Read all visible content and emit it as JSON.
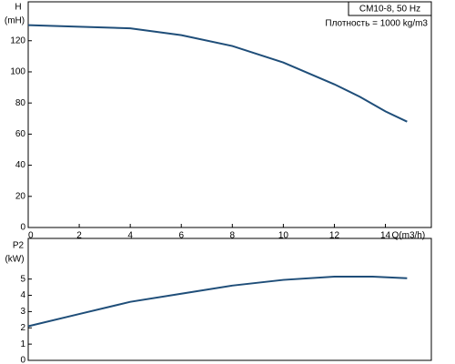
{
  "chart_data": [
    {
      "type": "line",
      "ylabel": "H",
      "yunit": "(mH)",
      "xlabel": "Q(m3/h)",
      "annotations": [
        "CM10-8, 50 Hz",
        "Плотность = 1000 kg/m3"
      ],
      "x": [
        0,
        2,
        4,
        6,
        8,
        10,
        12,
        13,
        14,
        14.85
      ],
      "values": [
        130,
        129,
        128,
        123.6,
        116.6,
        106,
        92,
        84,
        74.6,
        68
      ],
      "color": "#1f4e79",
      "xlim": [
        0,
        15.8
      ],
      "xticks": [
        0,
        2,
        4,
        6,
        8,
        10,
        12,
        14
      ],
      "ylim": [
        0,
        145
      ],
      "yticks": [
        0,
        20,
        40,
        60,
        80,
        100,
        120
      ]
    },
    {
      "type": "line",
      "ylabel": "P2",
      "yunit": "(kW)",
      "x": [
        0,
        2,
        4,
        6,
        8,
        10,
        12,
        13.5,
        14.85
      ],
      "values": [
        2.1,
        2.85,
        3.6,
        4.1,
        4.6,
        4.95,
        5.15,
        5.15,
        5.05
      ],
      "color": "#1f4e79",
      "xlim": [
        0,
        15.8
      ],
      "ylim": [
        0,
        7.5
      ],
      "yticks": [
        0,
        1,
        2,
        3,
        4,
        5
      ]
    }
  ]
}
